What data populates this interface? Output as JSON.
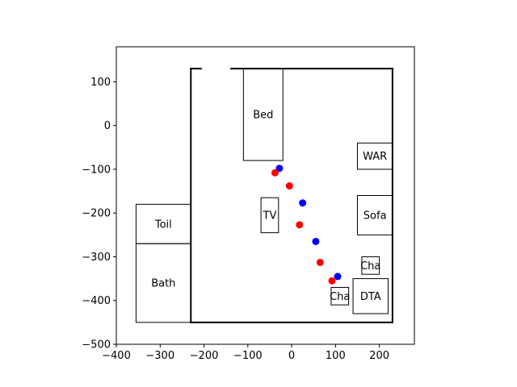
{
  "chart_data": {
    "type": "scatter",
    "title": "",
    "xlabel": "",
    "ylabel": "",
    "xlim": [
      -400,
      280
    ],
    "ylim": [
      -500,
      180
    ],
    "xticks": [
      -400,
      -300,
      -200,
      -100,
      0,
      100,
      200
    ],
    "yticks": [
      -500,
      -400,
      -300,
      -200,
      -100,
      0,
      100
    ],
    "xtick_labels": [
      "−400",
      "−300",
      "−200",
      "−100",
      "0",
      "100",
      "200"
    ],
    "ytick_labels": [
      "−500",
      "−400",
      "−300",
      "−200",
      "−100",
      "0",
      "100"
    ],
    "grid": false,
    "walls": {
      "outer": [
        [
          [
            -230,
            130
          ],
          [
            -230,
            -450
          ]
        ],
        [
          [
            -230,
            -450
          ],
          [
            230,
            -450
          ]
        ],
        [
          [
            230,
            -450
          ],
          [
            230,
            130
          ]
        ],
        [
          [
            230,
            130
          ],
          [
            -230,
            130
          ]
        ]
      ],
      "door_gaps": [
        [
          [
            -205,
            130
          ],
          [
            -140,
            130
          ]
        ]
      ]
    },
    "furniture": [
      {
        "label": "Bed",
        "x0": -110,
        "y0": -80,
        "x1": -20,
        "y1": 130
      },
      {
        "label": "WAR",
        "x0": 150,
        "y0": -100,
        "x1": 230,
        "y1": -40
      },
      {
        "label": "Toil",
        "x0": -355,
        "y0": -270,
        "x1": -230,
        "y1": -180
      },
      {
        "label": "Bath",
        "x0": -355,
        "y0": -450,
        "x1": -230,
        "y1": -270
      },
      {
        "label": "TV",
        "x0": -70,
        "y0": -245,
        "x1": -30,
        "y1": -165
      },
      {
        "label": "Sofa",
        "x0": 150,
        "y0": -250,
        "x1": 230,
        "y1": -160
      },
      {
        "label": "Cha",
        "x0": 160,
        "y0": -340,
        "x1": 200,
        "y1": -300
      },
      {
        "label": "DTA",
        "x0": 140,
        "y0": -430,
        "x1": 220,
        "y1": -350
      },
      {
        "label": "Cha",
        "x0": 90,
        "y0": -410,
        "x1": 130,
        "y1": -370
      }
    ],
    "series": [
      {
        "color": "#0000ff",
        "points": [
          {
            "x": -28,
            "y": -98
          },
          {
            "x": 25,
            "y": -177
          },
          {
            "x": 55,
            "y": -265
          },
          {
            "x": 105,
            "y": -345
          }
        ]
      },
      {
        "color": "#ff0000",
        "points": [
          {
            "x": -38,
            "y": -108
          },
          {
            "x": -5,
            "y": -138
          },
          {
            "x": 18,
            "y": -227
          },
          {
            "x": 65,
            "y": -313
          },
          {
            "x": 92,
            "y": -355
          }
        ]
      }
    ]
  }
}
